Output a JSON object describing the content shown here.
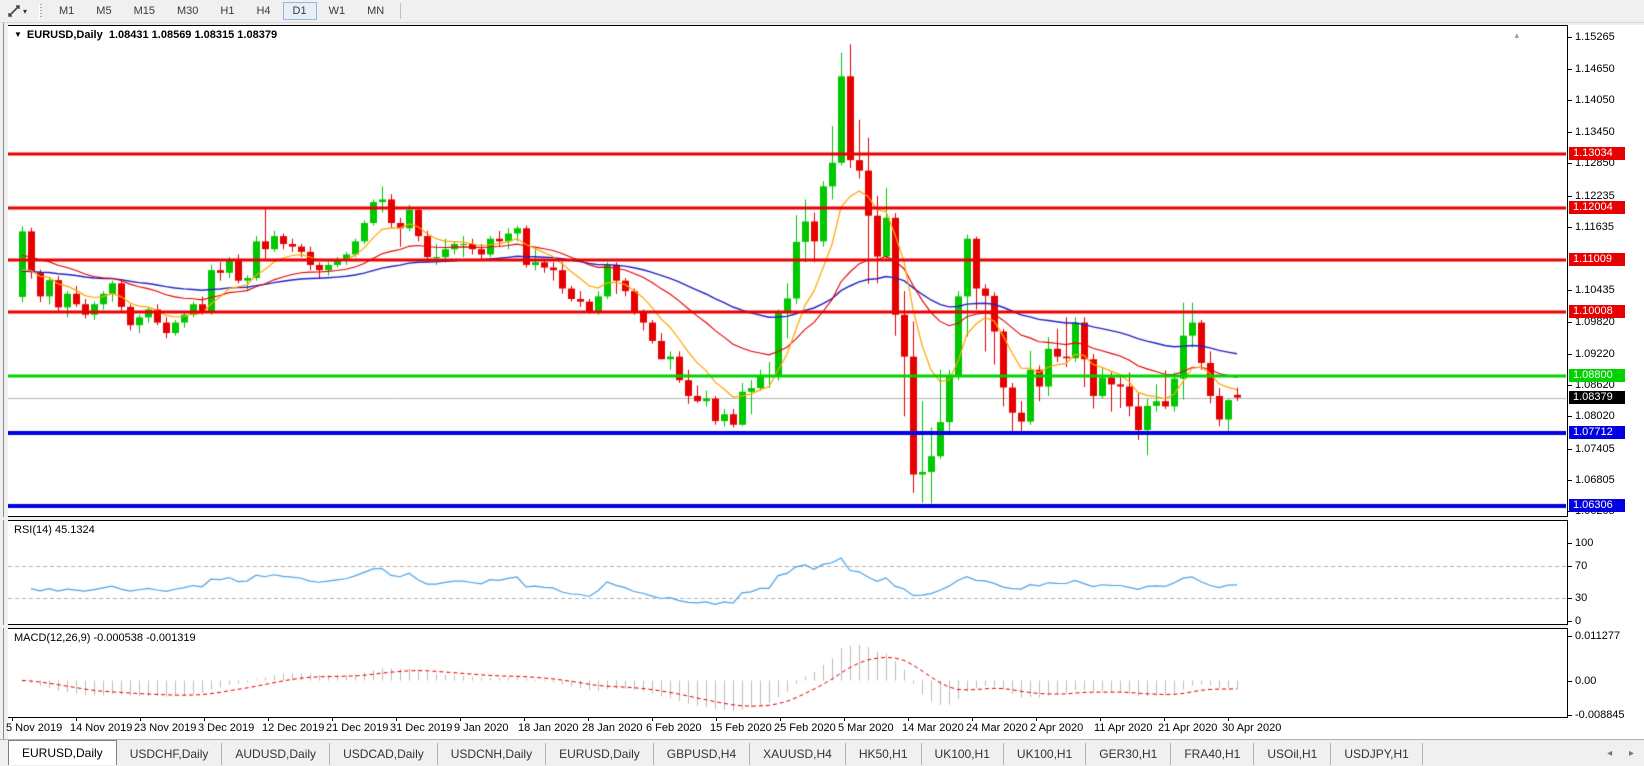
{
  "icons": {
    "chart_menu": "▼",
    "toolbar_dropdown": "▾",
    "scroll_left": "◂",
    "scroll_right": "▸",
    "scroll_up": "▴"
  },
  "toolbar": {
    "timeframes": [
      "M1",
      "M5",
      "M15",
      "M30",
      "H1",
      "H4",
      "D1",
      "W1",
      "MN"
    ],
    "active_timeframe": "D1"
  },
  "chart": {
    "symbol_period": "EURUSD,Daily",
    "ohlc": "1.08431 1.08569 1.08315 1.08379"
  },
  "price_axis": {
    "ticks": [
      "1.15265",
      "1.14650",
      "1.14050",
      "1.13450",
      "1.12850",
      "1.12235",
      "1.11635",
      "1.10435",
      "1.09820",
      "1.09220",
      "1.08620",
      "1.08020",
      "1.07405",
      "1.06805",
      "1.06205"
    ]
  },
  "levels": [
    {
      "label": "1.13034",
      "price": 1.13034,
      "color": "#e60000",
      "width": 3
    },
    {
      "label": "1.12004",
      "price": 1.12004,
      "color": "#e60000",
      "width": 3
    },
    {
      "label": "1.11009",
      "price": 1.11009,
      "color": "#e60000",
      "width": 3
    },
    {
      "label": "1.10008",
      "price": 1.10008,
      "color": "#e60000",
      "width": 3
    },
    {
      "label": "1.08800",
      "price": 1.088,
      "color": "#00d300",
      "width": 3
    },
    {
      "label": "1.07712",
      "price": 1.07712,
      "color": "#0000e0",
      "width": 4
    },
    {
      "label": "1.06306",
      "price": 1.06306,
      "color": "#0000e0",
      "width": 4
    }
  ],
  "bid": {
    "label": "1.08379",
    "price": 1.08379,
    "label_bg": "#000000"
  },
  "rsi": {
    "label": "RSI(14) 45.1324",
    "ticks": [
      {
        "label": "100",
        "value": 100
      },
      {
        "label": "70",
        "value": 70
      },
      {
        "label": "30",
        "value": 30
      },
      {
        "label": "0",
        "value": 0
      }
    ],
    "guides": [
      70,
      30
    ]
  },
  "macd": {
    "label": "MACD(12,26,9) -0.000538 -0.001319",
    "ticks": [
      {
        "label": "0.011277",
        "value": 0.011277
      },
      {
        "label": "0.00",
        "value": 0
      },
      {
        "label": "-0.008845",
        "value": -0.008845
      }
    ]
  },
  "date_axis": [
    "5 Nov 2019",
    "14 Nov 2019",
    "23 Nov 2019",
    "3 Dec 2019",
    "12 Dec 2019",
    "21 Dec 2019",
    "31 Dec 2019",
    "9 Jan 2020",
    "18 Jan 2020",
    "28 Jan 2020",
    "6 Feb 2020",
    "15 Feb 2020",
    "25 Feb 2020",
    "5 Mar 2020",
    "14 Mar 2020",
    "24 Mar 2020",
    "2 Apr 2020",
    "11 Apr 2020",
    "21 Apr 2020",
    "30 Apr 2020"
  ],
  "tab_bar": {
    "active_index": 0,
    "tabs": [
      "EURUSD,Daily",
      "USDCHF,Daily",
      "AUDUSD,Daily",
      "USDCAD,Daily",
      "USDCNH,Daily",
      "EURUSD,Daily",
      "GBPUSD,H4",
      "XAUUSD,H4",
      "HK50,H1",
      "UK100,H1",
      "UK100,H1",
      "GER30,H1",
      "FRA40,H1",
      "USOil,H1",
      "USDJPY,H1"
    ]
  },
  "chart_data": {
    "type": "candlestick",
    "symbol": "EURUSD",
    "timeframe": "Daily",
    "title": "EURUSD,Daily 1.08431 1.08569 1.08315 1.08379",
    "y_axis_range": [
      1.061,
      1.1547
    ],
    "up_color": "#00c800",
    "down_color": "#e60000",
    "bid_price": 1.08379,
    "x_axis_dates": [
      "5 Nov 2019",
      "14 Nov 2019",
      "23 Nov 2019",
      "3 Dec 2019",
      "12 Dec 2019",
      "21 Dec 2019",
      "31 Dec 2019",
      "9 Jan 2020",
      "18 Jan 2020",
      "28 Jan 2020",
      "6 Feb 2020",
      "15 Feb 2020",
      "25 Feb 2020",
      "5 Mar 2020",
      "14 Mar 2020",
      "24 Mar 2020",
      "2 Apr 2020",
      "11 Apr 2020",
      "21 Apr 2020",
      "30 Apr 2020"
    ],
    "horizontal_levels": [
      1.13034,
      1.12004,
      1.11009,
      1.10008,
      1.088,
      1.07712,
      1.06306
    ],
    "moving_averages": [
      {
        "name": "fast",
        "period": 8,
        "color": "#ffa500",
        "width": 1.2,
        "seed": 1.106
      },
      {
        "name": "medium",
        "period": 24,
        "color": "#e60000",
        "width": 1.1,
        "seed": 1.1105
      },
      {
        "name": "slow",
        "period": 55,
        "color": "#2222c8",
        "width": 1.4,
        "seed": 1.1076
      }
    ],
    "rsi": {
      "period": 14,
      "current": 45.1324,
      "overbought": 70,
      "oversold": 30,
      "color": "#4da3e8"
    },
    "macd": {
      "fast": 12,
      "slow": 26,
      "signal_period": 9,
      "current_main": -0.000538,
      "current_signal": -0.001319,
      "histogram_color": "#bdbdbd",
      "signal_color": "#e60000"
    },
    "candles": [
      [
        1.103,
        1.1165,
        1.102,
        1.1155
      ],
      [
        1.1155,
        1.1162,
        1.1065,
        1.1077
      ],
      [
        1.1077,
        1.1082,
        1.102,
        1.1031
      ],
      [
        1.1031,
        1.1066,
        1.1016,
        1.1062
      ],
      [
        1.1062,
        1.107,
        1.1001,
        1.101
      ],
      [
        1.101,
        1.1041,
        1.0991,
        1.1036
      ],
      [
        1.1036,
        1.1051,
        1.1011,
        1.1016
      ],
      [
        1.1016,
        1.1026,
        1.0989,
        1.0996
      ],
      [
        1.0996,
        1.1021,
        1.0986,
        1.1016
      ],
      [
        1.1016,
        1.1041,
        1.1006,
        1.1036
      ],
      [
        1.1036,
        1.1061,
        1.1021,
        1.1056
      ],
      [
        1.1056,
        1.1062,
        1.1001,
        1.1011
      ],
      [
        1.1011,
        1.1016,
        1.0966,
        1.0976
      ],
      [
        1.0976,
        1.0996,
        1.0961,
        1.0991
      ],
      [
        1.0991,
        1.1011,
        1.0981,
        1.1006
      ],
      [
        1.1006,
        1.1016,
        1.0976,
        1.0981
      ],
      [
        1.0981,
        1.0991,
        1.0951,
        1.0961
      ],
      [
        1.0961,
        1.0986,
        1.0956,
        1.0981
      ],
      [
        1.0981,
        1.1001,
        1.0971,
        1.0996
      ],
      [
        1.0996,
        1.1021,
        1.0991,
        1.1016
      ],
      [
        1.1016,
        1.1031,
        1.0996,
        1.1001
      ],
      [
        1.1001,
        1.1091,
        1.0996,
        1.1081
      ],
      [
        1.1081,
        1.1096,
        1.1061,
        1.1076
      ],
      [
        1.1076,
        1.1106,
        1.1066,
        1.1101
      ],
      [
        1.1101,
        1.1111,
        1.1056,
        1.1061
      ],
      [
        1.1061,
        1.1071,
        1.1041,
        1.1066
      ],
      [
        1.1066,
        1.1146,
        1.1061,
        1.1136
      ],
      [
        1.1136,
        1.1201,
        1.1101,
        1.1121
      ],
      [
        1.1121,
        1.1156,
        1.1116,
        1.1146
      ],
      [
        1.1146,
        1.1151,
        1.1121,
        1.1131
      ],
      [
        1.1131,
        1.1141,
        1.1116,
        1.1126
      ],
      [
        1.1126,
        1.1131,
        1.1106,
        1.1116
      ],
      [
        1.1116,
        1.1126,
        1.1081,
        1.1091
      ],
      [
        1.1091,
        1.1096,
        1.1066,
        1.1081
      ],
      [
        1.1081,
        1.1096,
        1.1071,
        1.1091
      ],
      [
        1.1091,
        1.1106,
        1.1086,
        1.1101
      ],
      [
        1.1101,
        1.1116,
        1.1091,
        1.1111
      ],
      [
        1.1111,
        1.1141,
        1.1106,
        1.1136
      ],
      [
        1.1136,
        1.1176,
        1.1131,
        1.1171
      ],
      [
        1.1171,
        1.1216,
        1.1166,
        1.1211
      ],
      [
        1.1211,
        1.1241,
        1.1191,
        1.1216
      ],
      [
        1.1216,
        1.1226,
        1.1161,
        1.1171
      ],
      [
        1.1171,
        1.1181,
        1.1126,
        1.1161
      ],
      [
        1.1161,
        1.1206,
        1.1156,
        1.1196
      ],
      [
        1.1196,
        1.1201,
        1.1136,
        1.1146
      ],
      [
        1.1146,
        1.1156,
        1.1096,
        1.1106
      ],
      [
        1.1106,
        1.1131,
        1.1091,
        1.1106
      ],
      [
        1.1106,
        1.1141,
        1.1096,
        1.1121
      ],
      [
        1.1121,
        1.1136,
        1.1111,
        1.1131
      ],
      [
        1.1131,
        1.1146,
        1.1106,
        1.1131
      ],
      [
        1.1131,
        1.1141,
        1.1111,
        1.1121
      ],
      [
        1.1121,
        1.1131,
        1.1101,
        1.1111
      ],
      [
        1.1111,
        1.1146,
        1.1106,
        1.1141
      ],
      [
        1.1141,
        1.1156,
        1.1126,
        1.1136
      ],
      [
        1.1136,
        1.1161,
        1.1121,
        1.1151
      ],
      [
        1.1151,
        1.1166,
        1.1136,
        1.1161
      ],
      [
        1.1161,
        1.1166,
        1.1086,
        1.1091
      ],
      [
        1.1091,
        1.1121,
        1.1081,
        1.1096
      ],
      [
        1.1096,
        1.1101,
        1.1076,
        1.1086
      ],
      [
        1.1086,
        1.1096,
        1.1061,
        1.1081
      ],
      [
        1.1081,
        1.1096,
        1.1036,
        1.1046
      ],
      [
        1.1046,
        1.1051,
        1.1021,
        1.1026
      ],
      [
        1.1026,
        1.1041,
        1.1011,
        1.1021
      ],
      [
        1.1021,
        1.1026,
        1.0998,
        1.1001
      ],
      [
        1.1001,
        1.1041,
        1.0996,
        1.1031
      ],
      [
        1.1031,
        1.1096,
        1.1026,
        1.1091
      ],
      [
        1.1091,
        1.1096,
        1.1036,
        1.1061
      ],
      [
        1.1061,
        1.1066,
        1.1031,
        1.1041
      ],
      [
        1.1041,
        1.1046,
        1.0996,
        1.1001
      ],
      [
        1.1001,
        1.1006,
        1.0966,
        1.0981
      ],
      [
        1.0981,
        1.0986,
        1.0941,
        1.0946
      ],
      [
        1.0946,
        1.0961,
        1.0911,
        1.0911
      ],
      [
        1.0911,
        1.0926,
        1.0891,
        1.0916
      ],
      [
        1.0916,
        1.0926,
        1.0866,
        1.0871
      ],
      [
        1.0871,
        1.0891,
        1.0826,
        1.0841
      ],
      [
        1.0841,
        1.0861,
        1.0828,
        1.0831
      ],
      [
        1.0831,
        1.0851,
        1.0821,
        1.0836
      ],
      [
        1.0836,
        1.0841,
        1.0786,
        1.0793
      ],
      [
        1.0793,
        1.0816,
        1.0783,
        1.0806
      ],
      [
        1.0806,
        1.0816,
        1.0781,
        1.0786
      ],
      [
        1.0786,
        1.0866,
        1.0784,
        1.0849
      ],
      [
        1.0849,
        1.0871,
        1.0806,
        1.0856
      ],
      [
        1.0856,
        1.0891,
        1.0851,
        1.0881
      ],
      [
        1.0881,
        1.0906,
        1.0856,
        1.0881
      ],
      [
        1.0881,
        1.1006,
        1.0871,
        1.0999
      ],
      [
        1.0999,
        1.1056,
        1.0951,
        1.1027
      ],
      [
        1.1027,
        1.1186,
        1.1016,
        1.1135
      ],
      [
        1.1135,
        1.1216,
        1.1096,
        1.1174
      ],
      [
        1.1174,
        1.1191,
        1.1096,
        1.1136
      ],
      [
        1.1136,
        1.1251,
        1.1126,
        1.1241
      ],
      [
        1.1241,
        1.1356,
        1.1216,
        1.1286
      ],
      [
        1.1286,
        1.1496,
        1.1281,
        1.1451
      ],
      [
        1.1451,
        1.1512,
        1.1276,
        1.1291
      ],
      [
        1.1291,
        1.1368,
        1.1256,
        1.1271
      ],
      [
        1.1271,
        1.1334,
        1.1055,
        1.1185
      ],
      [
        1.1185,
        1.1223,
        1.1056,
        1.1107
      ],
      [
        1.1107,
        1.1238,
        1.1101,
        1.1181
      ],
      [
        1.1181,
        1.119,
        1.0956,
        1.0996
      ],
      [
        1.0996,
        1.1041,
        1.0802,
        1.0916
      ],
      [
        1.0916,
        1.0983,
        1.0656,
        1.0691
      ],
      [
        1.0691,
        1.0831,
        1.0637,
        1.0696
      ],
      [
        1.0696,
        1.0781,
        1.0636,
        1.0726
      ],
      [
        1.0726,
        1.0891,
        1.0721,
        1.0791
      ],
      [
        1.0791,
        1.0891,
        1.0766,
        1.0881
      ],
      [
        1.0881,
        1.1041,
        1.0871,
        1.1031
      ],
      [
        1.1031,
        1.1149,
        1.0954,
        1.1141
      ],
      [
        1.1141,
        1.1145,
        1.1006,
        1.1046
      ],
      [
        1.1046,
        1.1054,
        1.0926,
        1.1032
      ],
      [
        1.1032,
        1.1039,
        1.0901,
        1.0964
      ],
      [
        1.0964,
        1.0969,
        1.0821,
        1.0857
      ],
      [
        1.0857,
        1.0866,
        1.0774,
        1.0809
      ],
      [
        1.0809,
        1.0831,
        1.0769,
        1.0792
      ],
      [
        1.0792,
        1.0927,
        1.0786,
        1.0891
      ],
      [
        1.0891,
        1.0899,
        1.0831,
        1.0859
      ],
      [
        1.0859,
        1.0953,
        1.0841,
        1.0931
      ],
      [
        1.0931,
        1.0969,
        1.0906,
        1.0916
      ],
      [
        1.0916,
        1.0991,
        1.0896,
        1.0913
      ],
      [
        1.0913,
        1.0991,
        1.0906,
        1.0981
      ],
      [
        1.0981,
        1.0991,
        1.0858,
        1.0911
      ],
      [
        1.0911,
        1.0921,
        1.0817,
        1.0841
      ],
      [
        1.0841,
        1.0896,
        1.0836,
        1.0876
      ],
      [
        1.0876,
        1.0886,
        1.0811,
        1.0863
      ],
      [
        1.0863,
        1.0881,
        1.0818,
        1.0859
      ],
      [
        1.0859,
        1.0886,
        1.0802,
        1.0821
      ],
      [
        1.0821,
        1.0846,
        1.0757,
        1.0776
      ],
      [
        1.0776,
        1.0836,
        1.0728,
        1.0822
      ],
      [
        1.0822,
        1.0863,
        1.0811,
        1.0831
      ],
      [
        1.0831,
        1.089,
        1.0816,
        1.0821
      ],
      [
        1.0821,
        1.0886,
        1.0811,
        1.0874
      ],
      [
        1.0874,
        1.1019,
        1.0834,
        1.0956
      ],
      [
        1.0956,
        1.1019,
        1.0934,
        1.0981
      ],
      [
        1.0981,
        1.0986,
        1.0891,
        1.0904
      ],
      [
        1.0904,
        1.0926,
        1.0827,
        1.0841
      ],
      [
        1.0841,
        1.0856,
        1.0783,
        1.0796
      ],
      [
        1.0796,
        1.0835,
        1.0768,
        1.0833
      ],
      [
        1.08431,
        1.08569,
        1.08315,
        1.08379
      ]
    ]
  }
}
